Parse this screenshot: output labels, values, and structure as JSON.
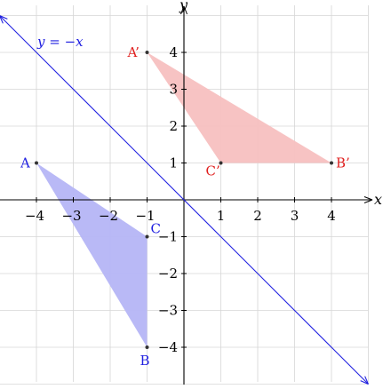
{
  "axes": {
    "x_label": "x",
    "y_label": "y",
    "xlim": [
      -5,
      5
    ],
    "ylim": [
      -5.3,
      5.3
    ],
    "x_ticks": [
      "−4",
      "−3",
      "−2",
      "−1",
      "1",
      "2",
      "3",
      "4"
    ],
    "y_ticks": [
      "4",
      "3",
      "2",
      "1",
      "−1",
      "−2",
      "−3",
      "−4"
    ],
    "grid": true
  },
  "line": {
    "label": "y = −x",
    "color": "#1f1fe0",
    "slope": -1,
    "intercept": 0
  },
  "original_triangle": {
    "color": "#1f1fe0",
    "fill": "#b5b5f5",
    "points": [
      {
        "name": "A",
        "x": -4,
        "y": 1
      },
      {
        "name": "B",
        "x": -1,
        "y": -4
      },
      {
        "name": "C",
        "x": -1,
        "y": -1
      }
    ]
  },
  "image_triangle": {
    "color": "#e0201f",
    "fill": "#f7c0c0",
    "points": [
      {
        "name": "A’",
        "x": -1,
        "y": 4
      },
      {
        "name": "B’",
        "x": 4,
        "y": 1
      },
      {
        "name": "C’",
        "x": 1,
        "y": 1
      }
    ]
  }
}
